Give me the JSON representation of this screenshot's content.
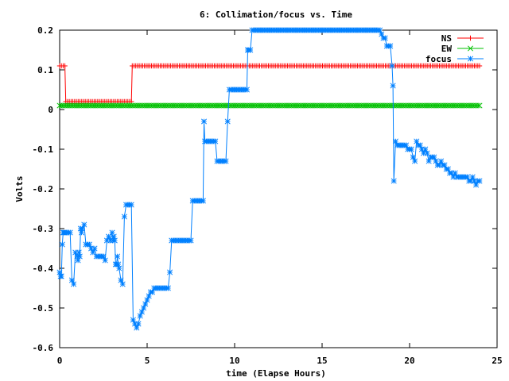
{
  "chart_data": {
    "type": "line",
    "title": "6: Collimation/focus vs. Time",
    "xlabel": "time (Elapse Hours)",
    "ylabel": "Volts",
    "xlim": [
      0,
      25
    ],
    "ylim": [
      -0.6,
      0.2
    ],
    "xticks": [
      0,
      5,
      10,
      15,
      20,
      25
    ],
    "xtick_labels": [
      "0",
      "5",
      "10",
      "15",
      "20",
      "25"
    ],
    "yticks": [
      -0.6,
      -0.5,
      -0.4,
      -0.3,
      -0.2,
      -0.1,
      0,
      0.1,
      0.2
    ],
    "ytick_labels": [
      "-0.6",
      "-0.5",
      "-0.4",
      "-0.3",
      "-0.2",
      "-0.1",
      "0",
      "0.1",
      "0.2"
    ],
    "grid": false,
    "legend_position": "top-right",
    "series": [
      {
        "name": "NS",
        "color": "#ff0000",
        "marker": "plus",
        "x": [
          0.0,
          0.1,
          0.2,
          0.3,
          0.35,
          0.45,
          4.1,
          4.15,
          4.25,
          24.0
        ],
        "y": [
          0.11,
          0.11,
          0.11,
          0.11,
          0.02,
          0.02,
          0.02,
          0.11,
          0.11,
          0.11
        ]
      },
      {
        "name": "EW",
        "color": "#00c000",
        "marker": "cross",
        "x": [
          0.0,
          24.0
        ],
        "y": [
          0.01,
          0.01
        ]
      },
      {
        "name": "focus",
        "color": "#0080ff",
        "marker": "star",
        "x": [
          0.0,
          0.05,
          0.1,
          0.15,
          0.2,
          0.25,
          0.3,
          0.4,
          0.5,
          0.6,
          0.7,
          0.8,
          0.9,
          1.0,
          1.05,
          1.1,
          1.15,
          1.2,
          1.25,
          1.3,
          1.4,
          1.5,
          1.6,
          1.7,
          1.8,
          1.9,
          2.0,
          2.1,
          2.2,
          2.3,
          2.4,
          2.5,
          2.6,
          2.7,
          2.8,
          2.9,
          3.0,
          3.05,
          3.1,
          3.15,
          3.2,
          3.25,
          3.3,
          3.35,
          3.4,
          3.5,
          3.6,
          3.7,
          3.8,
          3.9,
          4.0,
          4.1,
          4.2,
          4.3,
          4.4,
          4.5,
          4.6,
          4.7,
          4.8,
          4.9,
          5.0,
          5.1,
          5.2,
          5.3,
          5.4,
          5.5,
          5.6,
          5.7,
          5.8,
          5.9,
          6.0,
          6.1,
          6.2,
          6.3,
          6.4,
          6.5,
          7.0,
          7.5,
          7.6,
          7.8,
          8.2,
          8.25,
          8.3,
          8.4,
          8.5,
          8.9,
          9.0,
          9.5,
          9.6,
          9.7,
          10.4,
          10.5,
          10.6,
          10.7,
          10.75,
          10.8,
          10.9,
          11.0,
          15.0,
          18.0,
          18.2,
          18.3,
          18.4,
          18.5,
          18.6,
          18.7,
          18.8,
          18.9,
          19.0,
          19.05,
          19.1,
          19.2,
          19.3,
          19.4,
          19.6,
          19.8,
          19.9,
          20.0,
          20.1,
          20.2,
          20.3,
          20.4,
          20.5,
          20.6,
          20.7,
          20.8,
          20.9,
          21.0,
          21.1,
          21.2,
          21.3,
          21.4,
          21.5,
          21.6,
          21.7,
          21.8,
          21.9,
          22.0,
          22.1,
          22.2,
          22.3,
          22.4,
          22.5,
          22.6,
          22.7,
          22.8,
          22.9,
          23.0,
          23.1,
          23.2,
          23.3,
          23.4,
          23.5,
          23.6,
          23.7,
          23.8,
          23.9,
          24.0
        ],
        "y": [
          -0.41,
          -0.42,
          -0.42,
          -0.34,
          -0.31,
          -0.31,
          -0.31,
          -0.31,
          -0.31,
          -0.31,
          -0.43,
          -0.44,
          -0.36,
          -0.37,
          -0.38,
          -0.36,
          -0.37,
          -0.3,
          -0.31,
          -0.3,
          -0.29,
          -0.34,
          -0.34,
          -0.34,
          -0.35,
          -0.36,
          -0.35,
          -0.37,
          -0.37,
          -0.37,
          -0.37,
          -0.37,
          -0.38,
          -0.33,
          -0.32,
          -0.33,
          -0.31,
          -0.33,
          -0.32,
          -0.33,
          -0.39,
          -0.39,
          -0.37,
          -0.39,
          -0.4,
          -0.43,
          -0.44,
          -0.27,
          -0.24,
          -0.24,
          -0.24,
          -0.24,
          -0.53,
          -0.54,
          -0.55,
          -0.54,
          -0.52,
          -0.51,
          -0.5,
          -0.49,
          -0.48,
          -0.47,
          -0.46,
          -0.46,
          -0.45,
          -0.45,
          -0.45,
          -0.45,
          -0.45,
          -0.45,
          -0.45,
          -0.45,
          -0.45,
          -0.41,
          -0.33,
          -0.33,
          -0.33,
          -0.33,
          -0.23,
          -0.23,
          -0.23,
          -0.03,
          -0.08,
          -0.08,
          -0.08,
          -0.08,
          -0.13,
          -0.13,
          -0.03,
          0.05,
          0.05,
          0.05,
          0.05,
          0.05,
          0.15,
          0.15,
          0.15,
          0.2,
          0.2,
          0.2,
          0.2,
          0.2,
          0.19,
          0.18,
          0.18,
          0.16,
          0.16,
          0.16,
          0.11,
          0.06,
          -0.18,
          -0.08,
          -0.09,
          -0.09,
          -0.09,
          -0.09,
          -0.1,
          -0.1,
          -0.1,
          -0.12,
          -0.13,
          -0.08,
          -0.09,
          -0.09,
          -0.1,
          -0.11,
          -0.1,
          -0.11,
          -0.13,
          -0.12,
          -0.12,
          -0.12,
          -0.13,
          -0.14,
          -0.14,
          -0.13,
          -0.14,
          -0.14,
          -0.15,
          -0.15,
          -0.16,
          -0.16,
          -0.17,
          -0.16,
          -0.17,
          -0.17,
          -0.17,
          -0.17,
          -0.17,
          -0.17,
          -0.17,
          -0.18,
          -0.18,
          -0.17,
          -0.18,
          -0.19,
          -0.18,
          -0.18
        ]
      }
    ]
  }
}
